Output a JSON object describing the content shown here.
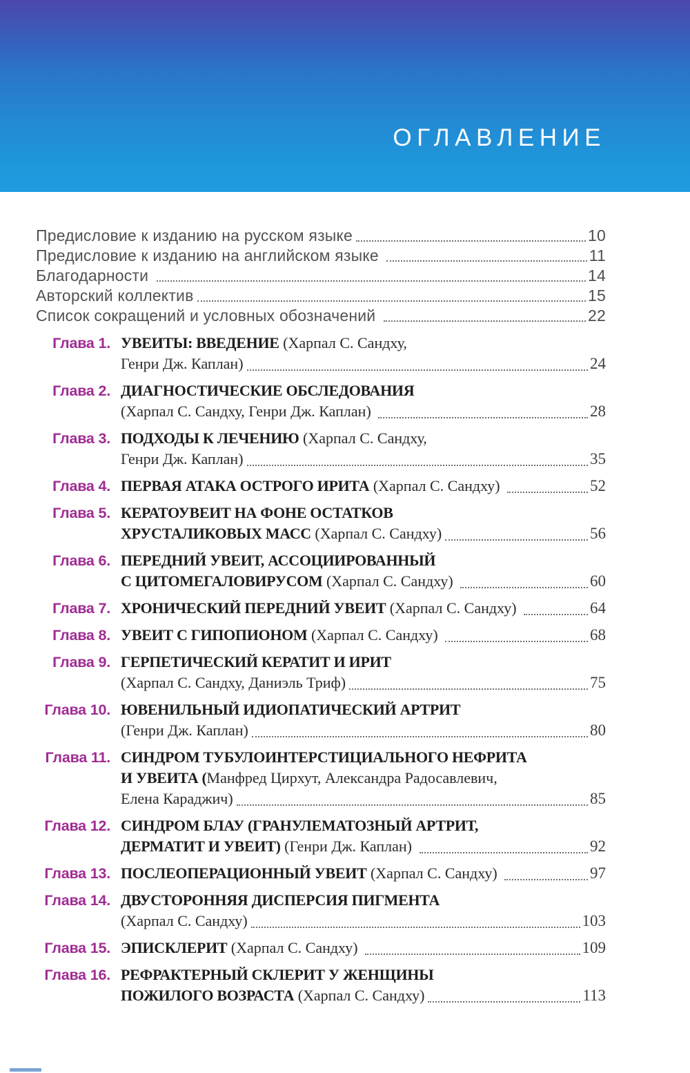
{
  "header": {
    "title": "ОГЛАВЛЕНИЕ"
  },
  "colors": {
    "banner_gradient_top": "#4c47ab",
    "banner_gradient_bottom": "#1e9cdf",
    "chapter_label": "#a02c93",
    "body_text": "#1e1e1e",
    "front_matter_text": "#525252"
  },
  "front_matter": [
    {
      "label": "Предисловие к изданию на русском языке",
      "page": "10"
    },
    {
      "label": "Предисловие к изданию на английском языке ",
      "page": "11"
    },
    {
      "label": "Благодарности ",
      "page": "14"
    },
    {
      "label": "Авторский коллектив",
      "page": "15"
    },
    {
      "label": "Список сокращений и условных обозначений ",
      "page": "22"
    }
  ],
  "chapters": [
    {
      "label": "Глава 1.",
      "lines": [
        {
          "bold": "УВЕИТЫ: ВВЕДЕНИЕ",
          "normal": " (Харпал С. Сандху,"
        },
        {
          "normal": "Генри Дж. Каплан)",
          "page": "24"
        }
      ]
    },
    {
      "label": "Глава 2.",
      "lines": [
        {
          "bold": "ДИАГНОСТИЧЕСКИЕ ОБСЛЕДОВАНИЯ"
        },
        {
          "normal": "(Харпал С. Сандху, Генри Дж. Каплан) ",
          "page": "28"
        }
      ]
    },
    {
      "label": "Глава 3.",
      "lines": [
        {
          "bold": "ПОДХОДЫ К ЛЕЧЕНИЮ",
          "normal": " (Харпал С. Сандху,"
        },
        {
          "normal": "Генри Дж. Каплан)",
          "page": "35"
        }
      ]
    },
    {
      "label": "Глава 4.",
      "lines": [
        {
          "bold": "ПЕРВАЯ АТАКА ОСТРОГО ИРИТА",
          "normal": " (Харпал С. Сандху) ",
          "page": "52"
        }
      ]
    },
    {
      "label": "Глава 5.",
      "lines": [
        {
          "bold": "КЕРАТОУВЕИТ НА ФОНЕ ОСТАТКОВ"
        },
        {
          "bold": "ХРУСТАЛИКОВЫХ МАСС",
          "normal": " (Харпал С. Сандху)",
          "page": "56"
        }
      ]
    },
    {
      "label": "Глава 6.",
      "lines": [
        {
          "bold": "ПЕРЕДНИЙ УВЕИТ, АССОЦИИРОВАННЫЙ"
        },
        {
          "bold": "С ЦИТОМЕГАЛОВИРУСОМ",
          "normal": " (Харпал С. Сандху) ",
          "page": "60"
        }
      ]
    },
    {
      "label": "Глава 7.",
      "lines": [
        {
          "bold": "ХРОНИЧЕСКИЙ ПЕРЕДНИЙ УВЕИТ",
          "normal": " (Харпал С. Сандху) ",
          "page": "64"
        }
      ]
    },
    {
      "label": "Глава 8.",
      "lines": [
        {
          "bold": "УВЕИТ С ГИПОПИОНОМ",
          "normal": " (Харпал С. Сандху) ",
          "page": "68"
        }
      ]
    },
    {
      "label": "Глава 9.",
      "lines": [
        {
          "bold": "ГЕРПЕТИЧЕСКИЙ КЕРАТИТ И ИРИТ"
        },
        {
          "normal": "(Харпал С. Сандху, Даниэль Триф)",
          "page": "75"
        }
      ]
    },
    {
      "label": "Глава 10.",
      "lines": [
        {
          "bold": "ЮВЕНИЛЬНЫЙ ИДИОПАТИЧЕСКИЙ АРТРИТ"
        },
        {
          "normal": "(Генри Дж. Каплан)",
          "page": "80"
        }
      ]
    },
    {
      "label": "Глава 11.",
      "lines": [
        {
          "bold": "СИНДРОМ ТУБУЛОИНТЕРСТИЦИАЛЬНОГО НЕФРИТА"
        },
        {
          "bold": "И УВЕИТА (",
          "normal": "Манфред Цирхут, Александра Радосавлевич,"
        },
        {
          "normal": "Елена Караджич)",
          "page": "85"
        }
      ]
    },
    {
      "label": "Глава 12.",
      "lines": [
        {
          "bold": "СИНДРОМ БЛАУ (ГРАНУЛЕМАТОЗНЫЙ АРТРИТ,"
        },
        {
          "bold": "ДЕРМАТИТ И УВЕИТ)",
          "normal": " (Генри Дж. Каплан) ",
          "page": "92"
        }
      ]
    },
    {
      "label": "Глава 13.",
      "lines": [
        {
          "bold": "ПОСЛЕОПЕРАЦИОННЫЙ УВЕИТ",
          "normal": " (Харпал С. Сандху) ",
          "page": "97"
        }
      ]
    },
    {
      "label": "Глава 14.",
      "lines": [
        {
          "bold": "ДВУСТОРОННЯЯ ДИСПЕРСИЯ ПИГМЕНТА"
        },
        {
          "normal": "(Харпал С. Сандху)",
          "page": "103"
        }
      ]
    },
    {
      "label": "Глава 15.",
      "lines": [
        {
          "bold": "ЭПИСКЛЕРИТ",
          "normal": " (Харпал С. Сандху) ",
          "page": "109"
        }
      ]
    },
    {
      "label": "Глава 16.",
      "lines": [
        {
          "bold": "РЕФРАКТЕРНЫЙ СКЛЕРИТ У ЖЕНЩИНЫ"
        },
        {
          "bold": "ПОЖИЛОГО ВОЗРАСТА",
          "normal": " (Харпал С. Сандху)",
          "page": "113"
        }
      ]
    }
  ]
}
